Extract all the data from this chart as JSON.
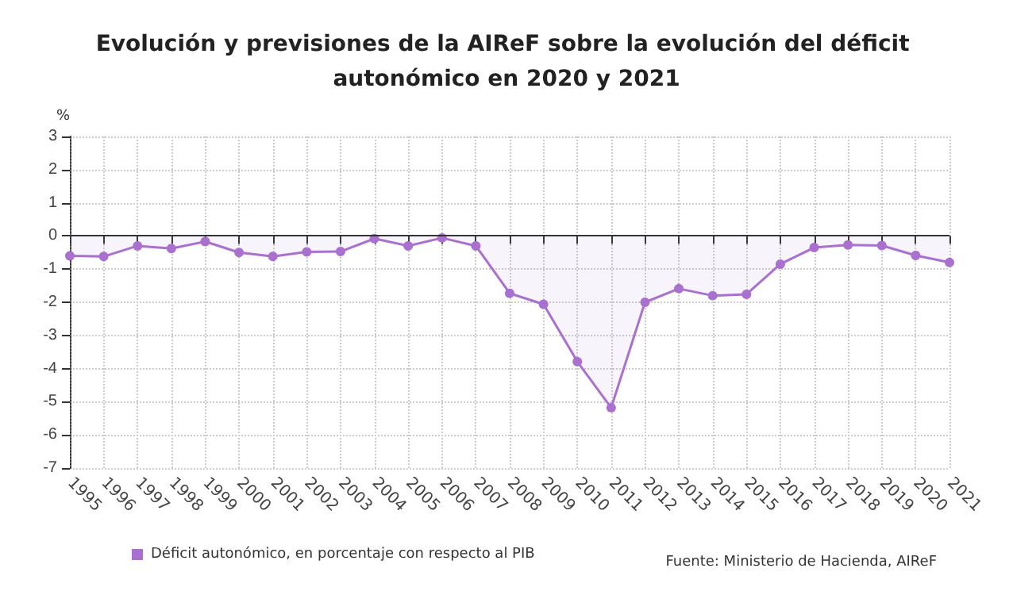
{
  "chart_data": {
    "type": "area",
    "title": "Evolución y previsiones de la AIReF sobre la evolución del déficit autonómico en 2020 y 2021",
    "ylabel": "%",
    "categories": [
      "1995",
      "1996",
      "1997",
      "1998",
      "1999",
      "2000",
      "2001",
      "2002",
      "2003",
      "2004",
      "2005",
      "2006",
      "2007",
      "2008",
      "2009",
      "2010",
      "2011",
      "2012",
      "2013",
      "2014",
      "2015",
      "2016",
      "2017",
      "2018",
      "2019",
      "2020",
      "2021"
    ],
    "series": [
      {
        "name": "Déficit autonómico, en porcentaje con respecto al PIB",
        "color": "#a970d0",
        "values": [
          -0.6,
          -0.62,
          -0.3,
          -0.38,
          -0.17,
          -0.5,
          -0.62,
          -0.48,
          -0.47,
          -0.08,
          -0.3,
          -0.06,
          -0.3,
          -1.73,
          -2.06,
          -3.79,
          -5.18,
          -2.0,
          -1.59,
          -1.8,
          -1.76,
          -0.85,
          -0.35,
          -0.27,
          -0.29,
          -0.59,
          -0.8
        ]
      }
    ],
    "ylim": [
      -7,
      3
    ],
    "yticks": [
      -7,
      -6,
      -5,
      -4,
      -3,
      -2,
      -1,
      0,
      1,
      2,
      3
    ],
    "grid": true,
    "legend": "bottom",
    "marker": "circle",
    "line_style": "solid",
    "ref_lines": [
      {
        "axis": "y",
        "value": 0,
        "color": "#333333"
      }
    ],
    "annotations": [
      "Fuente: Ministerio de Hacienda, AIReF"
    ]
  }
}
